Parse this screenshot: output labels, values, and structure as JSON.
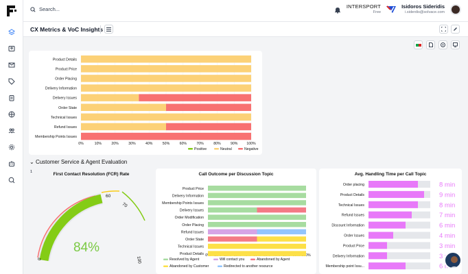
{
  "top": {
    "search_placeholder": "Search...",
    "brand": "INTERSPORT",
    "brand_plan": "Free",
    "user_name": "Isidoros Sideridis",
    "user_email": "i.siderdis@solvace.com"
  },
  "page": {
    "title": "CX Metrics & VoC Insights"
  },
  "sentiment": {
    "categories": [
      "Product Details",
      "Product Price",
      "Order Placing",
      "Delivery Information",
      "Delivery Issues",
      "Order State",
      "Technical Issues",
      "Refund Issues",
      "Membership Points Issues"
    ],
    "neutral": [
      100,
      100,
      100,
      100,
      34,
      50,
      100,
      50,
      0
    ],
    "negative": [
      0,
      0,
      0,
      0,
      66,
      50,
      0,
      50,
      100
    ],
    "ticks": [
      "0%",
      "10%",
      "20%",
      "30%",
      "40%",
      "50%",
      "60%",
      "70%",
      "80%",
      "90%",
      "100%"
    ],
    "legend": [
      "Positive",
      "Neutral",
      "Negative"
    ]
  },
  "section": {
    "title": "Customer Service & Agent Evaluation",
    "badge": "1"
  },
  "fcr": {
    "title": "First Contact Resolution (FCR) Rate",
    "value": "84%",
    "labels": [
      "0",
      "60",
      "70",
      "100"
    ]
  },
  "call_outcome": {
    "title": "Call Outcome per Discussion Topic",
    "categories": [
      "Product Price",
      "Delivery Information",
      "Membership Points Issues",
      "Delivery Issues",
      "Order Modification",
      "Order Placing",
      "Refund Issues",
      "Order State",
      "Technical Issues",
      "Product Details"
    ],
    "ticks": [
      "0%",
      "10%",
      "20%",
      "30%",
      "40%",
      "50%",
      "60%",
      "70%",
      "80%",
      "90%",
      "100%"
    ],
    "legend": [
      "Resolved by Agent",
      "Will contact you",
      "Abandoned by Agent",
      "Abandoned by Customer",
      "Redirected to another resource"
    ]
  },
  "aht": {
    "title": "Avg. Handling Time per Call Topic",
    "categories": [
      "Order placing",
      "Product Details",
      "Technical Issues",
      "Refund Issues",
      "Discount Information",
      "Order Issues",
      "Product Price",
      "Delivery Information",
      "Membership point Issu..."
    ],
    "values": [
      "8 min",
      "9 min",
      "8 min",
      "7 min",
      "6 min",
      "4 min",
      "3 min",
      "3 min",
      "6 min"
    ]
  },
  "chart_data": [
    {
      "type": "bar",
      "orientation": "horizontal",
      "stacked": true,
      "categories": [
        "Product Details",
        "Product Price",
        "Order Placing",
        "Delivery Information",
        "Delivery Issues",
        "Order State",
        "Technical Issues",
        "Refund Issues",
        "Membership Points Issues"
      ],
      "series": [
        {
          "name": "Positive",
          "values": [
            0,
            0,
            0,
            0,
            0,
            0,
            0,
            0,
            0
          ]
        },
        {
          "name": "Neutral",
          "values": [
            100,
            100,
            100,
            100,
            34,
            50,
            100,
            50,
            0
          ]
        },
        {
          "name": "Negative",
          "values": [
            0,
            0,
            0,
            0,
            66,
            50,
            0,
            50,
            100
          ]
        }
      ],
      "xlim": [
        0,
        100
      ],
      "legend": "bottom-right",
      "colors": {
        "Positive": "#84cc16",
        "Neutral": "#fcd177",
        "Negative": "#f87171"
      }
    },
    {
      "type": "gauge",
      "title": "First Contact Resolution (FCR) Rate",
      "value": 84,
      "range": [
        0,
        100
      ],
      "thresholds": [
        60,
        70
      ]
    },
    {
      "type": "bar",
      "orientation": "horizontal",
      "stacked": true,
      "title": "Call Outcome per Discussion Topic",
      "categories": [
        "Product Price",
        "Delivery Information",
        "Membership Points Issues",
        "Delivery Issues",
        "Order Modification",
        "Order Placing",
        "Refund Issues",
        "Order State",
        "Technical Issues",
        "Product Details"
      ],
      "series": [
        {
          "name": "Resolved by Agent",
          "values": [
            100,
            100,
            100,
            50,
            100,
            100,
            0,
            0,
            0,
            0
          ]
        },
        {
          "name": "Will contact you",
          "values": [
            0,
            0,
            0,
            0,
            0,
            0,
            50,
            0,
            0,
            0
          ]
        },
        {
          "name": "Abandoned by Agent",
          "values": [
            0,
            0,
            0,
            50,
            0,
            0,
            0,
            50,
            0,
            0
          ]
        },
        {
          "name": "Abandoned by Customer",
          "values": [
            0,
            0,
            0,
            0,
            0,
            0,
            0,
            50,
            100,
            100
          ]
        },
        {
          "name": "Redirected to another resource",
          "values": [
            0,
            0,
            0,
            0,
            0,
            0,
            50,
            0,
            0,
            0
          ]
        }
      ],
      "xlim": [
        0,
        100
      ],
      "legend": "bottom",
      "colors": {
        "Resolved by Agent": "#a7dca0",
        "Will contact you": "#d6a4e6",
        "Abandoned by Agent": "#f47a85",
        "Abandoned by Customer": "#fde047",
        "Redirected to another resource": "#93c5fd"
      }
    },
    {
      "type": "bar",
      "orientation": "horizontal",
      "title": "Avg. Handling Time per Call Topic",
      "categories": [
        "Order placing",
        "Product Details",
        "Technical Issues",
        "Refund Issues",
        "Discount Information",
        "Order Issues",
        "Product Price",
        "Delivery Information",
        "Membership point Issu..."
      ],
      "values": [
        8,
        9,
        8,
        7,
        6,
        4,
        3,
        3,
        6
      ],
      "unit": "min",
      "xlim": [
        0,
        10
      ]
    }
  ]
}
